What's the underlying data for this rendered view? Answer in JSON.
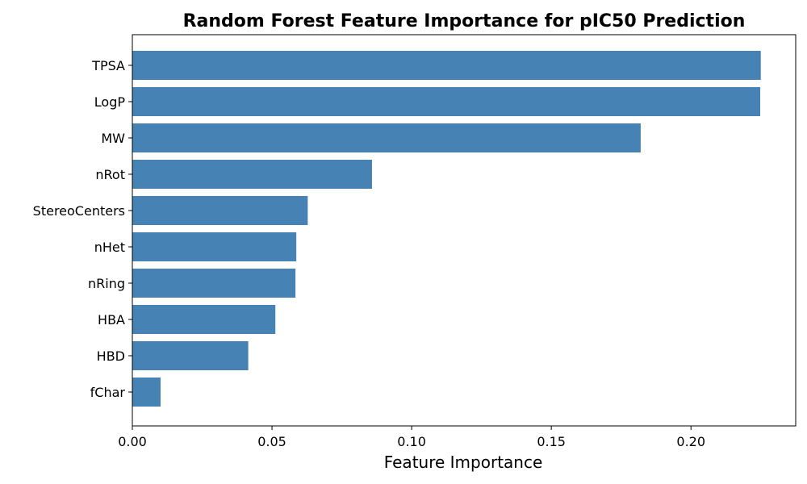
{
  "chart_data": {
    "type": "bar",
    "orientation": "horizontal",
    "title": "Random Forest Feature Importance for pIC50 Prediction",
    "xlabel": "Feature Importance",
    "ylabel": "",
    "categories": [
      "TPSA",
      "LogP",
      "MW",
      "nRot",
      "StereoCenters",
      "nHet",
      "nRing",
      "HBA",
      "HBD",
      "fChar"
    ],
    "values": [
      0.225,
      0.2248,
      0.182,
      0.0858,
      0.0628,
      0.0587,
      0.0584,
      0.0512,
      0.0415,
      0.0101
    ],
    "xlim": [
      0,
      0.2375
    ],
    "xticks": [
      "0.00",
      "0.05",
      "0.10",
      "0.15",
      "0.20"
    ],
    "xtick_values": [
      0,
      0.05,
      0.1,
      0.15,
      0.2
    ],
    "bar_color": "#4682b4",
    "grid": false,
    "legend": "none"
  }
}
